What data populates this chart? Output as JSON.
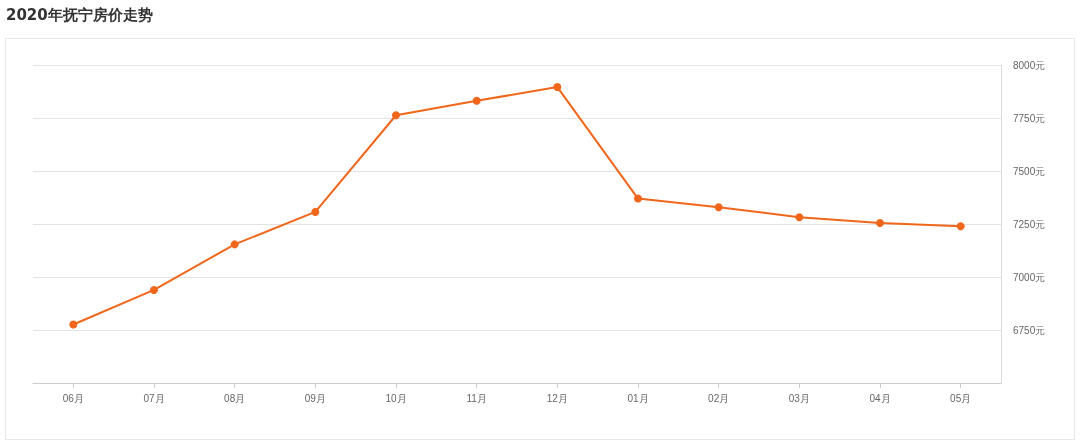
{
  "chart_data": {
    "type": "line",
    "title": "2020年抚宁房价走势",
    "categories": [
      "06月",
      "07月",
      "08月",
      "09月",
      "10月",
      "11月",
      "12月",
      "01月",
      "02月",
      "03月",
      "04月",
      "05月"
    ],
    "series": [
      {
        "color": "#f0661a",
        "values": [
          6776,
          6939,
          7154,
          7307,
          7763,
          7831,
          7896,
          7370,
          7329,
          7282,
          7255,
          7239
        ]
      }
    ],
    "ylim": [
      6500,
      8000
    ],
    "yticks": [
      {
        "value": 6750,
        "label": "6750元"
      },
      {
        "value": 7000,
        "label": "7000元"
      },
      {
        "value": 7250,
        "label": "7250元"
      },
      {
        "value": 7500,
        "label": "7500元"
      },
      {
        "value": 7750,
        "label": "7750元"
      },
      {
        "value": 8000,
        "label": "8000元"
      }
    ],
    "grid": "y",
    "marker": "circle",
    "line_style": "solid"
  }
}
